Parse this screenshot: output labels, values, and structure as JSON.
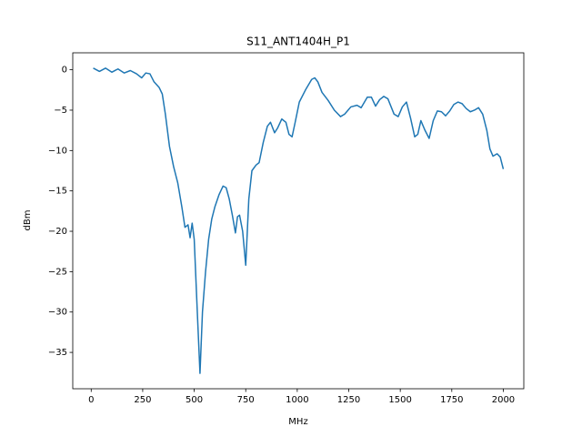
{
  "chart_data": {
    "type": "line",
    "title": "S11_ANT1404H_P1",
    "x_label": "MHz",
    "y_label": "dBm",
    "color": "#1f77b4",
    "x": [
      10,
      40,
      70,
      100,
      130,
      160,
      190,
      220,
      245,
      265,
      285,
      305,
      330,
      345,
      360,
      380,
      400,
      420,
      440,
      455,
      470,
      480,
      490,
      500,
      515,
      528,
      540,
      555,
      570,
      585,
      600,
      620,
      640,
      655,
      670,
      685,
      700,
      710,
      720,
      735,
      750,
      765,
      780,
      800,
      815,
      835,
      855,
      870,
      890,
      905,
      925,
      945,
      960,
      975,
      990,
      1010,
      1040,
      1070,
      1085,
      1100,
      1120,
      1150,
      1180,
      1210,
      1230,
      1260,
      1290,
      1310,
      1340,
      1360,
      1380,
      1400,
      1420,
      1440,
      1470,
      1490,
      1510,
      1530,
      1550,
      1570,
      1585,
      1600,
      1620,
      1640,
      1660,
      1680,
      1700,
      1720,
      1740,
      1760,
      1780,
      1800,
      1820,
      1840,
      1860,
      1880,
      1900,
      1920,
      1935,
      1950,
      1970,
      1985,
      2000
    ],
    "values": [
      0.2,
      -0.2,
      0.2,
      -0.3,
      0.1,
      -0.4,
      -0.1,
      -0.5,
      -1.0,
      -0.4,
      -0.5,
      -1.5,
      -2.2,
      -3.0,
      -5.5,
      -9.5,
      -12,
      -14,
      -17,
      -19.5,
      -19.2,
      -20.8,
      -19.0,
      -21,
      -30,
      -37.6,
      -30,
      -25,
      -21,
      -18.5,
      -17,
      -15.5,
      -14.4,
      -14.6,
      -16,
      -18,
      -20.2,
      -18.2,
      -18,
      -20,
      -24.2,
      -16,
      -12.5,
      -11.8,
      -11.5,
      -9,
      -7,
      -6.5,
      -7.8,
      -7.2,
      -6.1,
      -6.5,
      -8,
      -8.3,
      -6.5,
      -4,
      -2.5,
      -1.2,
      -1.0,
      -1.5,
      -2.8,
      -3.8,
      -5.0,
      -5.8,
      -5.5,
      -4.6,
      -4.4,
      -4.7,
      -3.4,
      -3.4,
      -4.5,
      -3.7,
      -3.3,
      -3.6,
      -5.5,
      -5.8,
      -4.6,
      -4.0,
      -6,
      -8.3,
      -8.0,
      -6.3,
      -7.5,
      -8.5,
      -6.3,
      -5.1,
      -5.2,
      -5.7,
      -5.1,
      -4.3,
      -4.0,
      -4.2,
      -4.8,
      -5.2,
      -5.0,
      -4.7,
      -5.5,
      -7.5,
      -9.8,
      -10.7,
      -10.4,
      -10.8,
      -12.3
    ],
    "xlim": [
      -89.5,
      2099.5
    ],
    "ylim": [
      -39.5,
      2.1
    ],
    "xticks": [
      0,
      250,
      500,
      750,
      1000,
      1250,
      1500,
      1750,
      2000
    ],
    "yticks": [
      0,
      {
        "value": -5,
        "label": "−5"
      },
      {
        "value": -10,
        "label": "−10"
      },
      {
        "value": -15,
        "label": "−15"
      },
      {
        "value": -20,
        "label": "−20"
      },
      {
        "value": -25,
        "label": "−25"
      },
      {
        "value": -30,
        "label": "−30"
      },
      {
        "value": -35,
        "label": "−35"
      }
    ]
  }
}
